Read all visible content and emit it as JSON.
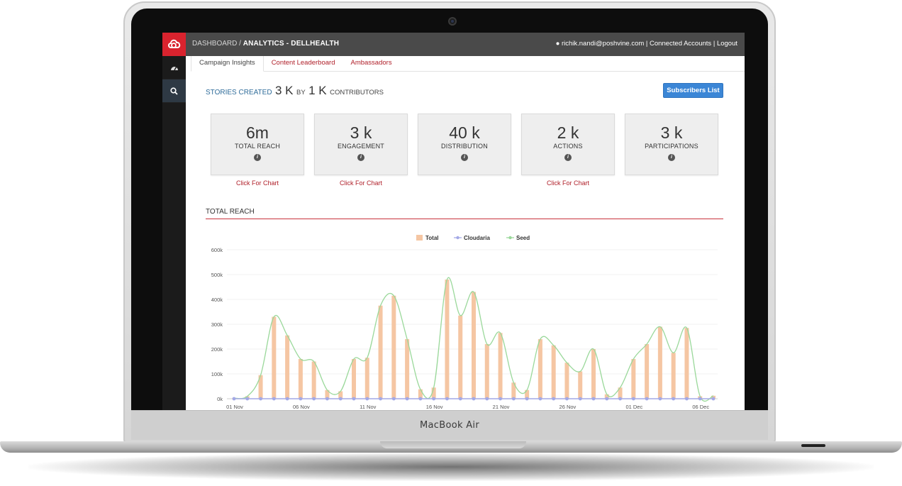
{
  "device": {
    "model_label": "MacBook Air"
  },
  "header": {
    "breadcrumb_root": "DASHBOARD /",
    "breadcrumb_current": "ANALYTICS - DELLHEALTH",
    "user_email": "richik.nandi@poshvine.com",
    "separator": "|",
    "connected_accounts": "Connected Accounts",
    "logout": "Logout"
  },
  "sidebar": {
    "items": [
      {
        "icon": "dashboard-icon"
      },
      {
        "icon": "search-icon"
      }
    ]
  },
  "tabs": [
    {
      "label": "Campaign Insights"
    },
    {
      "label": "Content Leaderboard"
    },
    {
      "label": "Ambassadors"
    }
  ],
  "summary": {
    "prefix": "STORIES CREATED",
    "stories": "3 K",
    "by": "BY",
    "contributors_count": "1 K",
    "contributors_label": "CONTRIBUTORS",
    "subscribers_button": "Subscribers List"
  },
  "kpis": [
    {
      "value": "6m",
      "label": "TOTAL REACH",
      "link": "Click For Chart"
    },
    {
      "value": "3 k",
      "label": "ENGAGEMENT",
      "link": "Click For Chart"
    },
    {
      "value": "40 k",
      "label": "DISTRIBUTION",
      "link": ""
    },
    {
      "value": "2 k",
      "label": "ACTIONS",
      "link": "Click For Chart"
    },
    {
      "value": "3 k",
      "label": "PARTICIPATIONS",
      "link": ""
    }
  ],
  "section_title": "TOTAL REACH",
  "colors": {
    "brand": "#d9232e",
    "link": "#b0202a",
    "button": "#3b86d6",
    "bar": "#f5c6a3",
    "seed_line": "#9ad89a",
    "cloudaria_line": "#a3a9e6"
  },
  "chart_data": {
    "type": "bar",
    "legend": [
      "Total",
      "Cloudaria",
      "Seed"
    ],
    "legend_position": "top-center",
    "ylim": [
      0,
      600000
    ],
    "yticks": [
      "0k",
      "100k",
      "200k",
      "300k",
      "400k",
      "500k",
      "600k"
    ],
    "xtick_labels": [
      "01 Nov",
      "06 Nov",
      "11 Nov",
      "16 Nov",
      "21 Nov",
      "26 Nov",
      "01 Dec",
      "06 Dec"
    ],
    "xtick_index": [
      0,
      5,
      10,
      15,
      20,
      25,
      30,
      35
    ],
    "series": [
      {
        "name": "Total",
        "type": "bar",
        "values": [
          2000,
          10000,
          95000,
          330000,
          255000,
          160000,
          150000,
          35000,
          30000,
          160000,
          165000,
          375000,
          415000,
          240000,
          38000,
          45000,
          480000,
          335000,
          430000,
          220000,
          265000,
          65000,
          35000,
          240000,
          215000,
          145000,
          110000,
          200000,
          18000,
          45000,
          160000,
          220000,
          290000,
          185000,
          285000,
          10000,
          12000
        ]
      },
      {
        "name": "Cloudaria",
        "type": "line",
        "values": [
          0,
          0,
          0,
          0,
          0,
          0,
          0,
          0,
          0,
          0,
          0,
          0,
          0,
          0,
          0,
          0,
          0,
          0,
          0,
          0,
          0,
          0,
          0,
          0,
          0,
          0,
          0,
          0,
          0,
          0,
          0,
          0,
          0,
          0,
          0,
          0,
          0
        ]
      },
      {
        "name": "Seed",
        "type": "line",
        "values": [
          2000,
          10000,
          95000,
          330000,
          255000,
          160000,
          150000,
          35000,
          30000,
          160000,
          165000,
          375000,
          415000,
          240000,
          38000,
          45000,
          480000,
          335000,
          430000,
          220000,
          265000,
          65000,
          35000,
          240000,
          215000,
          145000,
          110000,
          200000,
          18000,
          45000,
          160000,
          220000,
          290000,
          185000,
          285000,
          10000,
          12000
        ]
      }
    ]
  }
}
